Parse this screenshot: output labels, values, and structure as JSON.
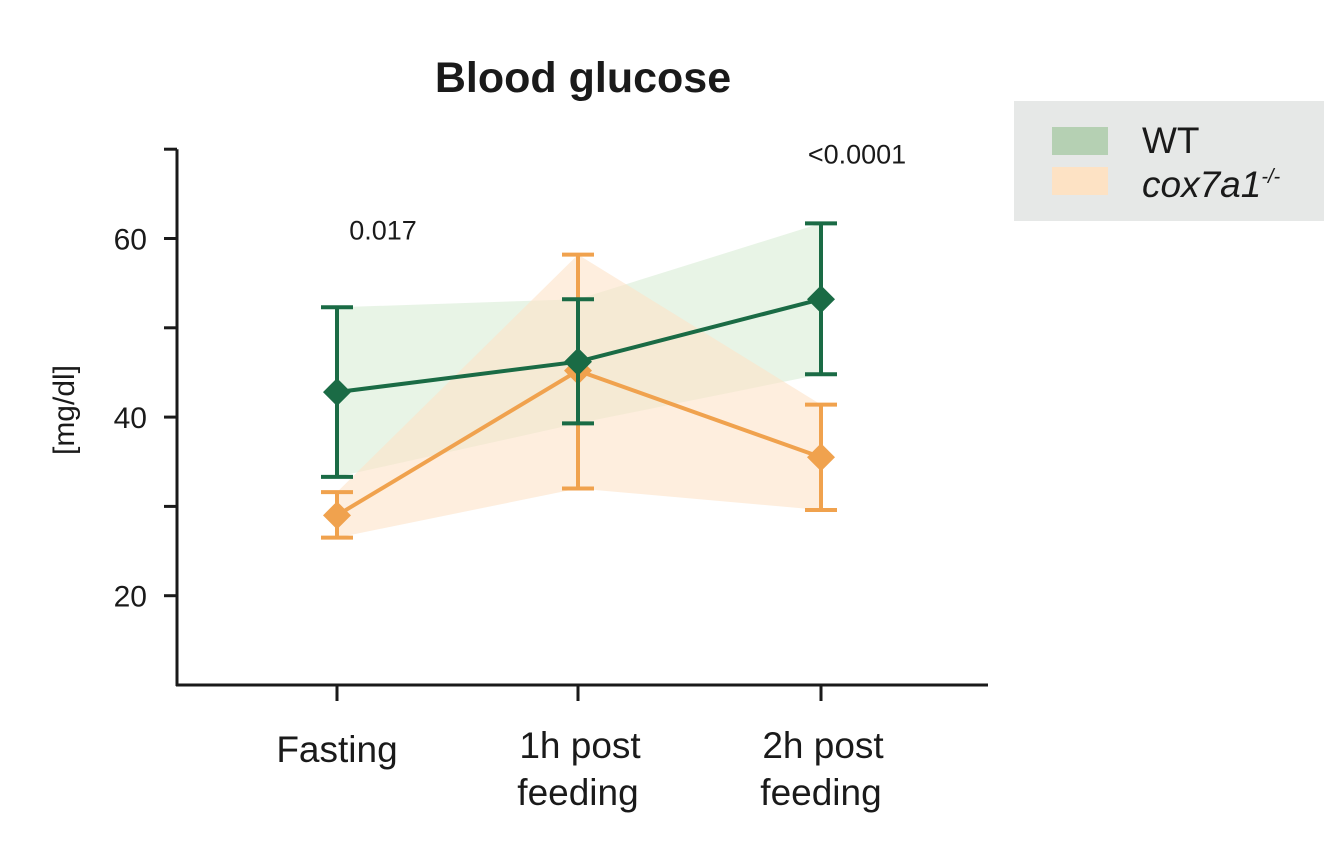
{
  "chart_data": {
    "type": "line",
    "title": "Blood glucose",
    "ylabel": "[mg/dl]",
    "xlabel": "",
    "ylim": [
      10,
      70
    ],
    "yticks": [
      20,
      40,
      60
    ],
    "categories": [
      "Fasting",
      "1h post feeding",
      "2h post feeding"
    ],
    "category_lines": [
      [
        "Fasting"
      ],
      [
        "1h post",
        "feeding"
      ],
      [
        "2h post",
        "feeding"
      ]
    ],
    "series": [
      {
        "name": "WT",
        "color": "#1a6b45",
        "band_color": "#d9ecd5",
        "values": [
          42.8,
          46.2,
          53.2
        ],
        "err_low": [
          33.3,
          39.3,
          44.8
        ],
        "err_high": [
          52.3,
          53.2,
          61.7
        ]
      },
      {
        "name": "cox7a1",
        "name_sup": "-/-",
        "color": "#f0a24e",
        "band_color": "#fde3c8",
        "values": [
          29.0,
          45.2,
          35.5
        ],
        "err_low": [
          26.5,
          32.0,
          29.6
        ],
        "err_high": [
          31.6,
          58.2,
          41.4
        ]
      }
    ],
    "annotations": [
      {
        "text": "0.017",
        "category": "Fasting",
        "y": 61.0
      },
      {
        "text": "<0.0001",
        "category": "2h post feeding",
        "y": 69.5
      }
    ],
    "legend_position": "right",
    "grid": false
  },
  "legend": {
    "items": [
      {
        "label": "WT",
        "sup": "",
        "swatch": "#b5d0b3"
      },
      {
        "label": "cox7a1",
        "sup": "-/-",
        "swatch": "#fde2c4"
      }
    ],
    "background": "#e6e8e7"
  }
}
